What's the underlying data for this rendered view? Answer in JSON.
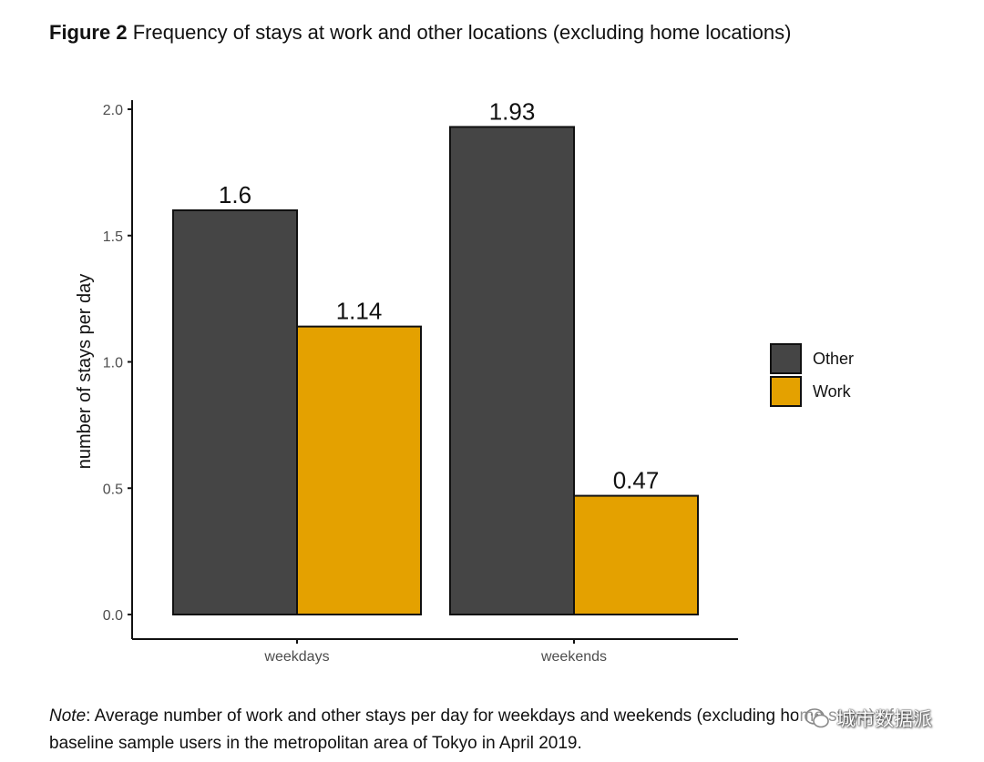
{
  "figure": {
    "label": "Figure 2",
    "title": "Frequency of stays at work and other locations (excluding home locations)"
  },
  "note": {
    "label": "Note",
    "text": ": Average number of work and other stays per day for weekdays and weekends (excluding home stays) of our baseline sample users in the metropolitan area of Tokyo in April 2019."
  },
  "watermark": {
    "text": "城市数据派"
  },
  "colors": {
    "other": "#454545",
    "work": "#E4A100",
    "axis": "#111111",
    "tick_label": "#4D4D4D"
  },
  "chart_data": {
    "type": "bar",
    "categories": [
      "weekdays",
      "weekends"
    ],
    "series": [
      {
        "name": "Other",
        "values": [
          1.6,
          1.93
        ],
        "labels": [
          "1.6",
          "1.93"
        ],
        "color": "#454545"
      },
      {
        "name": "Work",
        "values": [
          1.14,
          0.47
        ],
        "labels": [
          "1.14",
          "0.47"
        ],
        "color": "#E4A100"
      }
    ],
    "title": "",
    "xlabel": "",
    "ylabel": "number of stays per day",
    "ylim": [
      0,
      2.0
    ],
    "yticks": [
      0.0,
      0.5,
      1.0,
      1.5,
      2.0
    ],
    "ytick_labels": [
      "0.0",
      "0.5",
      "1.0",
      "1.5",
      "2.0"
    ],
    "grid": false,
    "legend_position": "right"
  }
}
